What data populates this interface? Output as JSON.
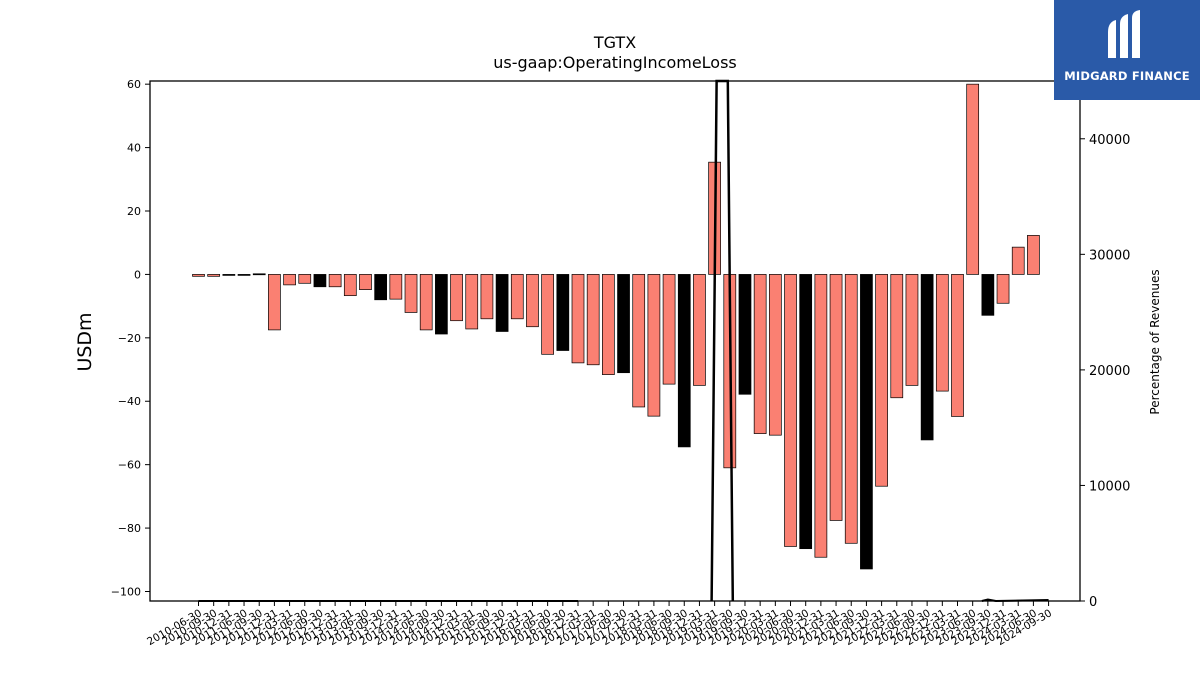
{
  "chart_data": {
    "type": "bar",
    "title": "TGTX",
    "subtitle": "us-gaap:OperatingIncomeLoss",
    "ylabel": "USDm",
    "y2label": "Percentage of Revenues",
    "ylim": [
      -103,
      61
    ],
    "y2lim": [
      0,
      45000
    ],
    "yticks": [
      60,
      40,
      20,
      0,
      -20,
      -40,
      -60,
      -80,
      -100
    ],
    "y2ticks": [
      0,
      10000,
      20000,
      30000,
      40000
    ],
    "categories": [
      "2010-06-30",
      "2010-09-30",
      "2010-12-31",
      "2011-06-30",
      "2011-09-30",
      "2011-12-31",
      "2012-03-31",
      "2012-06-30",
      "2012-09-30",
      "2012-12-31",
      "2013-03-31",
      "2013-06-30",
      "2013-09-30",
      "2013-12-31",
      "2014-03-31",
      "2014-06-30",
      "2014-09-30",
      "2014-12-31",
      "2015-03-31",
      "2015-06-30",
      "2015-09-30",
      "2015-12-31",
      "2016-03-31",
      "2016-06-30",
      "2016-09-30",
      "2016-12-31",
      "2017-03-31",
      "2017-06-30",
      "2017-09-30",
      "2017-12-31",
      "2018-03-31",
      "2018-06-30",
      "2018-09-30",
      "2018-12-31",
      "2019-03-31",
      "2019-06-30",
      "2019-09-30",
      "2019-12-31",
      "2020-03-31",
      "2020-06-30",
      "2020-09-30",
      "2020-12-31",
      "2021-03-31",
      "2021-06-30",
      "2021-09-30",
      "2021-12-31",
      "2022-03-31",
      "2022-06-30",
      "2022-09-30",
      "2022-12-31",
      "2023-03-31",
      "2023-06-30",
      "2023-09-30",
      "2023-12-31",
      "2024-03-31",
      "2024-06-30",
      "2024-09-30"
    ],
    "values": [
      -0.6,
      -0.6,
      -0.3,
      -0.3,
      0.2,
      -17.5,
      -3.3,
      -2.8,
      -3.9,
      -3.9,
      -6.7,
      -4.8,
      -8.0,
      -7.8,
      -12.0,
      -17.5,
      -18.8,
      -14.6,
      -17.2,
      -14.0,
      -18.0,
      -14.0,
      -16.5,
      -25.2,
      -24.0,
      -27.9,
      -28.5,
      -31.6,
      -31.0,
      -41.8,
      -44.7,
      -34.6,
      -54.4,
      -35.0,
      35.4,
      -61.0,
      -37.8,
      -50.2,
      -50.7,
      -85.8,
      -86.5,
      -89.2,
      -77.6,
      -84.8,
      -92.9,
      -66.8,
      -38.9,
      -35.0,
      -52.2,
      -36.8,
      -44.8,
      60.0,
      -12.9,
      -9.1,
      8.6,
      12.3,
      0
    ],
    "bar_colors": [
      "salmon",
      "salmon",
      "black",
      "black",
      "black",
      "salmon",
      "salmon",
      "salmon",
      "black",
      "salmon",
      "salmon",
      "salmon",
      "black",
      "salmon",
      "salmon",
      "salmon",
      "black",
      "salmon",
      "salmon",
      "salmon",
      "black",
      "salmon",
      "salmon",
      "salmon",
      "black",
      "salmon",
      "salmon",
      "salmon",
      "black",
      "salmon",
      "salmon",
      "salmon",
      "black",
      "salmon",
      "salmon",
      "salmon",
      "black",
      "salmon",
      "salmon",
      "salmon",
      "black",
      "salmon",
      "salmon",
      "salmon",
      "black",
      "salmon",
      "salmon",
      "salmon",
      "black",
      "salmon",
      "salmon",
      "salmon",
      "black",
      "salmon",
      "salmon",
      "salmon",
      "salmon"
    ],
    "colors": {
      "salmon": "#fa8072",
      "black": "#000000"
    },
    "secondary_line": {
      "series_note": "Percentage of Revenues",
      "spike_index": [
        34,
        35
      ],
      "tail_indices": [
        52,
        56
      ]
    },
    "grid": false,
    "legend": "none"
  },
  "logo": {
    "text": "MIDGARD FINANCE"
  }
}
